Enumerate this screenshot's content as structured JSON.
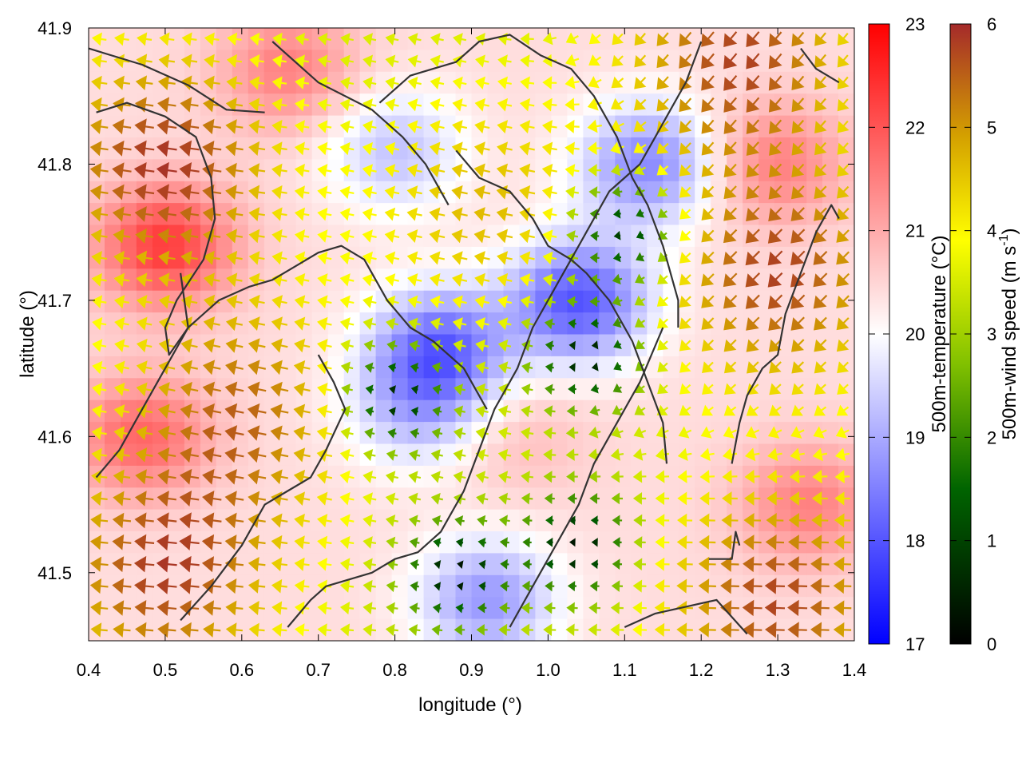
{
  "chart_data": {
    "type": "heatmap",
    "title": "",
    "xlabel": "longitude (°)",
    "ylabel": "latitude (°)",
    "xlim": [
      0.4,
      1.4
    ],
    "ylim": [
      41.45,
      41.9
    ],
    "x_ticks": [
      "0.4",
      "0.5",
      "0.6",
      "0.7",
      "0.8",
      "0.9",
      "1.0",
      "1.1",
      "1.2",
      "1.3",
      "1.4"
    ],
    "y_ticks": [
      "41.5",
      "41.6",
      "41.7",
      "41.8",
      "41.9"
    ],
    "grid": false,
    "fill_field": {
      "name": "500m-temperature",
      "unit": "°C",
      "colorbar_label": "500m-temperature (°C)",
      "range": [
        17,
        23
      ],
      "ticks": [
        "17",
        "18",
        "19",
        "20",
        "21",
        "22",
        "23"
      ],
      "colors": [
        "#0000ff",
        "#ffffff",
        "#ff0000"
      ],
      "cold_centers": [
        {
          "lon": 1.04,
          "lat": 41.7,
          "value": 18.0
        },
        {
          "lon": 0.86,
          "lat": 41.665,
          "value": 18.3
        },
        {
          "lon": 1.13,
          "lat": 41.8,
          "value": 18.6
        },
        {
          "lon": 0.8,
          "lat": 41.81,
          "value": 19.3
        },
        {
          "lon": 0.92,
          "lat": 41.48,
          "value": 18.8
        },
        {
          "lon": 0.83,
          "lat": 41.62,
          "value": 19.3
        }
      ],
      "warm_centers": [
        {
          "lon": 0.5,
          "lat": 41.74,
          "value": 22.3
        },
        {
          "lon": 0.47,
          "lat": 41.6,
          "value": 21.8
        },
        {
          "lon": 1.3,
          "lat": 41.8,
          "value": 21.5
        },
        {
          "lon": 1.34,
          "lat": 41.55,
          "value": 21.5
        },
        {
          "lon": 0.66,
          "lat": 41.87,
          "value": 21.5
        },
        {
          "lon": 0.96,
          "lat": 41.6,
          "value": 20.8
        }
      ]
    },
    "vector_field": {
      "name": "500m-wind speed",
      "unit": "m s-1",
      "colorbar_label_main": "500m-wind speed (m s",
      "colorbar_label_sup": "-1",
      "colorbar_label_end": ")",
      "range": [
        0,
        6
      ],
      "ticks": [
        "0",
        "1",
        "2",
        "3",
        "4",
        "5",
        "6"
      ],
      "colors": [
        "#000000",
        "#006400",
        "#80c000",
        "#ffff00",
        "#d4a000",
        "#a52a2a"
      ],
      "calm_centers": [
        {
          "lon": 1.05,
          "lat": 41.66
        },
        {
          "lon": 0.88,
          "lat": 41.5
        },
        {
          "lon": 0.8,
          "lat": 41.63
        },
        {
          "lon": 1.1,
          "lat": 41.75
        },
        {
          "lon": 1.04,
          "lat": 41.52
        }
      ],
      "flow_regions": [
        {
          "lon": 0.5,
          "lat": 41.8,
          "speed": 6.2,
          "direction_deg": 172
        },
        {
          "lon": 0.6,
          "lat": 41.62,
          "speed": 5.5,
          "direction_deg": 168
        },
        {
          "lon": 0.5,
          "lat": 41.5,
          "speed": 6.0,
          "direction_deg": 175
        },
        {
          "lon": 1.3,
          "lat": 41.72,
          "speed": 6.0,
          "direction_deg": 225
        },
        {
          "lon": 1.3,
          "lat": 41.48,
          "speed": 6.0,
          "direction_deg": 178
        },
        {
          "lon": 1.25,
          "lat": 41.88,
          "speed": 6.0,
          "direction_deg": 230
        },
        {
          "lon": 0.92,
          "lat": 41.77,
          "speed": 4.6,
          "direction_deg": 168
        }
      ]
    },
    "contours": [
      {
        "lon": [
          0.4,
          0.47,
          0.53,
          0.58,
          0.63
        ],
        "lat": [
          41.885,
          41.873,
          41.858,
          41.84,
          41.838
        ]
      },
      {
        "lon": [
          0.41,
          0.45,
          0.5,
          0.54,
          0.56,
          0.565,
          0.55,
          0.515,
          0.5,
          0.505,
          0.53,
          0.52
        ],
        "lat": [
          41.838,
          41.845,
          41.835,
          41.82,
          41.79,
          41.76,
          41.73,
          41.7,
          41.68,
          41.66,
          41.68,
          41.72
        ]
      },
      {
        "lon": [
          0.64,
          0.7,
          0.77,
          0.81,
          0.84,
          0.87
        ],
        "lat": [
          41.89,
          41.86,
          41.84,
          41.82,
          41.8,
          41.77
        ]
      },
      {
        "lon": [
          0.41,
          0.44,
          0.47,
          0.5,
          0.53,
          0.57,
          0.61,
          0.64,
          0.67,
          0.7,
          0.73,
          0.76,
          0.79,
          0.82,
          0.85,
          0.89,
          0.92
        ],
        "lat": [
          41.57,
          41.59,
          41.62,
          41.65,
          41.68,
          41.7,
          41.71,
          41.715,
          41.725,
          41.735,
          41.74,
          41.73,
          41.7,
          41.68,
          41.67,
          41.65,
          41.62
        ]
      },
      {
        "lon": [
          0.52,
          0.56,
          0.6,
          0.63,
          0.66,
          0.69,
          0.71,
          0.735,
          0.72,
          0.7
        ],
        "lat": [
          41.465,
          41.49,
          41.52,
          41.55,
          41.56,
          41.57,
          41.59,
          41.62,
          41.64,
          41.66
        ]
      },
      {
        "lon": [
          0.66,
          0.69,
          0.71,
          0.74,
          0.77,
          0.8,
          0.83,
          0.86,
          0.89,
          0.91,
          0.93,
          0.96,
          0.98,
          1.01,
          1.04,
          1.06,
          1.08,
          1.1,
          1.12,
          1.14,
          1.16,
          1.18,
          1.2
        ],
        "lat": [
          41.46,
          41.48,
          41.49,
          41.495,
          41.5,
          41.51,
          41.515,
          41.53,
          41.56,
          41.59,
          41.62,
          41.65,
          41.68,
          41.71,
          41.74,
          41.76,
          41.78,
          41.79,
          41.8,
          41.82,
          41.84,
          41.86,
          41.89
        ]
      },
      {
        "lon": [
          0.78,
          0.82,
          0.85,
          0.88,
          0.91,
          0.95,
          0.99,
          1.03,
          1.06,
          1.09,
          1.11,
          1.13,
          1.15,
          1.16,
          1.17,
          1.17
        ],
        "lat": [
          41.845,
          41.865,
          41.87,
          41.875,
          41.89,
          41.895,
          41.88,
          41.87,
          41.85,
          41.82,
          41.79,
          41.77,
          41.74,
          41.72,
          41.7,
          41.68
        ]
      },
      {
        "lon": [
          0.88,
          0.91,
          0.95,
          0.98,
          1.0,
          1.03,
          1.05,
          1.08,
          1.11,
          1.13,
          1.15,
          1.155
        ],
        "lat": [
          41.81,
          41.79,
          41.78,
          41.76,
          41.74,
          41.73,
          41.72,
          41.7,
          41.67,
          41.64,
          41.61,
          41.58
        ]
      },
      {
        "lon": [
          0.95,
          0.98,
          1.01,
          1.04,
          1.06,
          1.09,
          1.12,
          1.15
        ],
        "lat": [
          41.46,
          41.49,
          41.52,
          41.55,
          41.58,
          41.61,
          41.64,
          41.68
        ]
      },
      {
        "lon": [
          1.1,
          1.14,
          1.18,
          1.22,
          1.26
        ],
        "lat": [
          41.46,
          41.47,
          41.475,
          41.48,
          41.455
        ]
      },
      {
        "lon": [
          1.24,
          1.25,
          1.26,
          1.27,
          1.28,
          1.3,
          1.31,
          1.33,
          1.35,
          1.37,
          1.38
        ],
        "lat": [
          41.58,
          41.61,
          41.63,
          41.64,
          41.65,
          41.66,
          41.69,
          41.72,
          41.75,
          41.77,
          41.76
        ]
      },
      {
        "lon": [
          1.21,
          1.24,
          1.245,
          1.25
        ],
        "lat": [
          41.51,
          41.51,
          41.53,
          41.52
        ]
      },
      {
        "lon": [
          1.33,
          1.35,
          1.38
        ],
        "lat": [
          41.885,
          41.87,
          41.86
        ]
      }
    ]
  }
}
